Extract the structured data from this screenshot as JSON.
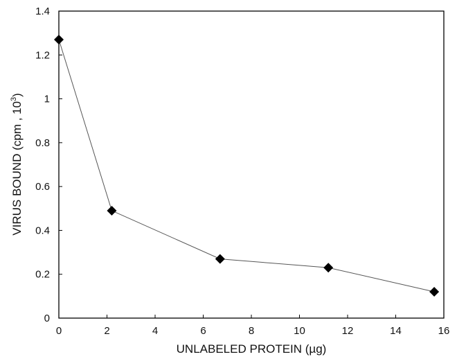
{
  "chart_data": {
    "type": "line",
    "xlabel": "UNLABELED PROTEIN (µg)",
    "ylabel": {
      "main": "VIRUS BOUND (cpm ,  10",
      "superscript": "3",
      "close": ")"
    },
    "xlim": [
      0,
      16
    ],
    "ylim": [
      0,
      1.4
    ],
    "x_ticks": [
      "0",
      "2",
      "4",
      "6",
      "8",
      "10",
      "12",
      "14",
      "16"
    ],
    "y_ticks": [
      "0",
      "0.2",
      "0.4",
      "0.6",
      "0.8",
      "1",
      "1.2",
      "1.4"
    ],
    "grid": false,
    "marker": "diamond",
    "series": [
      {
        "x": [
          0,
          2.2,
          6.7,
          11.2,
          15.6
        ],
        "y": [
          1.27,
          0.49,
          0.27,
          0.23,
          0.12
        ]
      }
    ],
    "colors": {
      "line": "#555555",
      "marker": "#000000",
      "axis": "#000000"
    }
  }
}
